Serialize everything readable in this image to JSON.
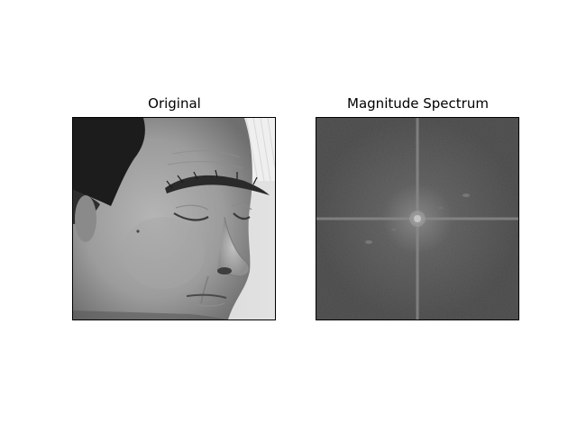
{
  "chart_data": [
    {
      "type": "image",
      "title": "Original",
      "content": "grayscale face photo",
      "colormap": "gray",
      "axes_ticks": false
    },
    {
      "type": "image",
      "title": "Magnitude Spectrum",
      "content": "2D FFT log-magnitude spectrum, centered",
      "colormap": "gray",
      "axes_ticks": false
    }
  ],
  "colors": {
    "background": "#ffffff",
    "frame": "#000000",
    "spectrum_base": "#4d4d4d",
    "spectrum_axis": "#9a9a9a"
  }
}
